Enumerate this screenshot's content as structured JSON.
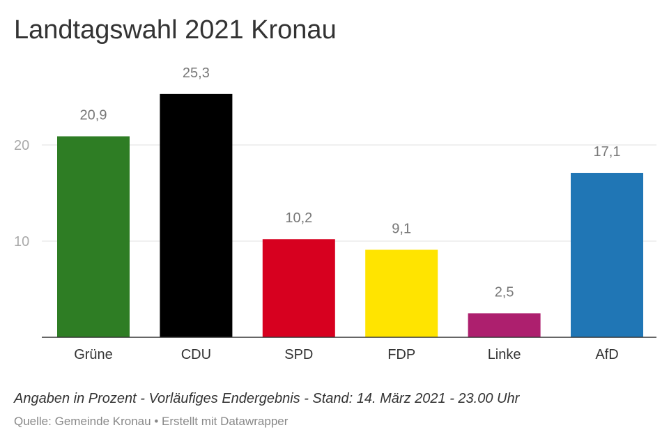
{
  "chart_data": {
    "type": "bar",
    "title": "Landtagswahl 2021 Kronau",
    "categories": [
      "Grüne",
      "CDU",
      "SPD",
      "FDP",
      "Linke",
      "AfD"
    ],
    "values": [
      20.9,
      25.3,
      10.2,
      9.1,
      2.5,
      17.1
    ],
    "value_labels": [
      "20,9",
      "25,3",
      "10,2",
      "9,1",
      "2,5",
      "17,1"
    ],
    "colors": [
      "#2e7d24",
      "#000000",
      "#d7001f",
      "#ffe400",
      "#ad1f6e",
      "#2076b5"
    ],
    "yticks": [
      10,
      20
    ],
    "ylim": [
      0,
      27
    ],
    "grid": true,
    "xlabel": "",
    "ylabel": ""
  },
  "footer": {
    "notes": "Angaben in Prozent - Vorläufiges Endergebnis - Stand: 14. März 2021 - 23.00 Uhr",
    "source_label": "Quelle:",
    "source_name": "Gemeinde Kronau",
    "separator": "•",
    "credit": "Erstellt mit Datawrapper"
  }
}
